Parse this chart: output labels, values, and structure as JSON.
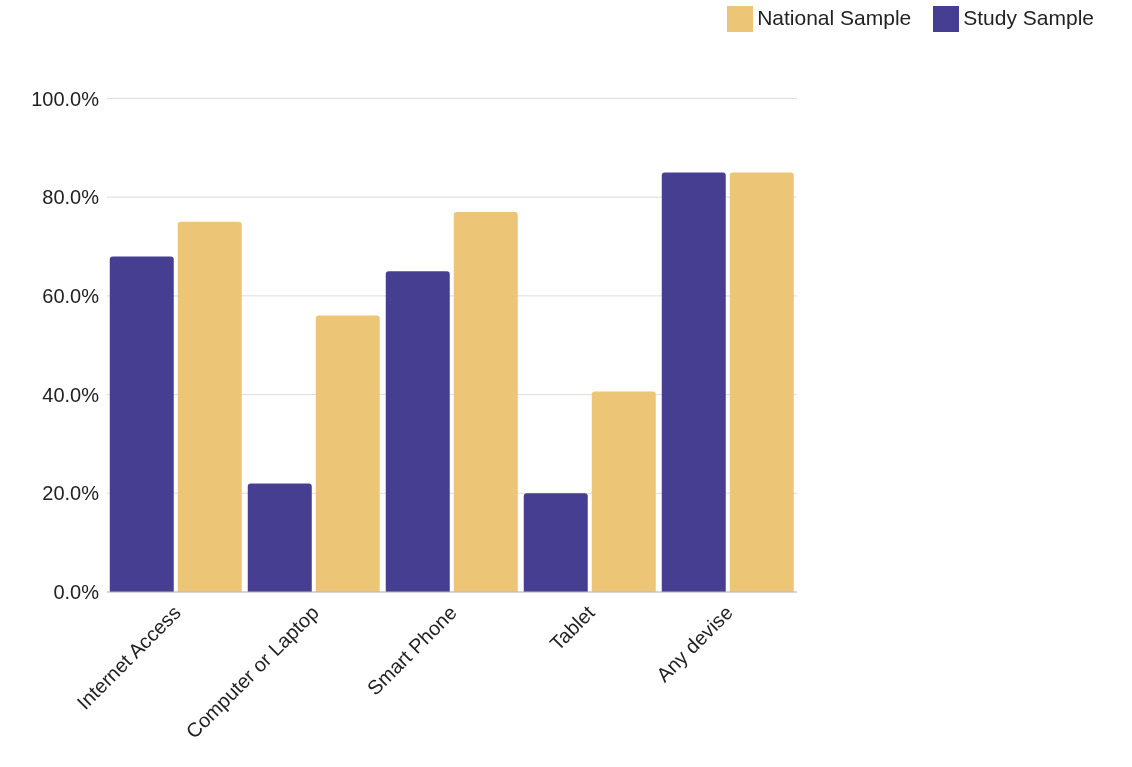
{
  "chart_data": {
    "type": "bar",
    "categories": [
      "Internet Access",
      "Computer or Laptop",
      "Smart Phone",
      "Tablet",
      "Any devise"
    ],
    "series": [
      {
        "name": "Study Sample",
        "color": "#463f91",
        "values": [
          68,
          22,
          65,
          20,
          85
        ]
      },
      {
        "name": "National Sample",
        "color": "#ecc576",
        "values": [
          75,
          56,
          77,
          40.6,
          85
        ]
      }
    ],
    "ylim": [
      0,
      100
    ],
    "yticks": [
      {
        "value": 0,
        "label": "0.0%"
      },
      {
        "value": 20,
        "label": "20.0%"
      },
      {
        "value": 40,
        "label": "40.0%"
      },
      {
        "value": 60,
        "label": "60.0%"
      },
      {
        "value": 80,
        "label": "80.0%"
      },
      {
        "value": 100,
        "label": "100.0%"
      }
    ],
    "grid": "y",
    "legend": "top right"
  }
}
